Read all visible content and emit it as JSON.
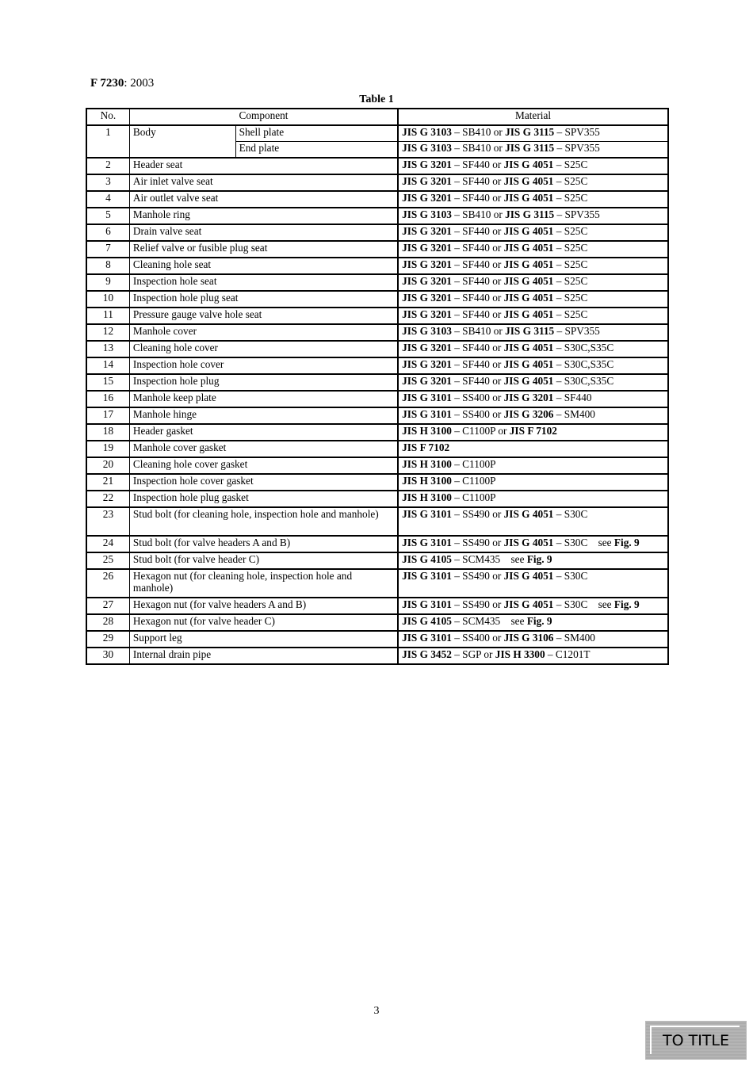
{
  "header": {
    "doc_code": "F 7230",
    "doc_year": ": 2003"
  },
  "table": {
    "caption": "Table 1",
    "columns": [
      "No.",
      "Component",
      "Material"
    ],
    "rows": [
      {
        "no": "1",
        "component": "Body",
        "sub": [
          {
            "label": "Shell plate",
            "material": [
              "JIS G 3103",
              " – SB410 or ",
              "JIS G 3115",
              " – SPV355"
            ]
          },
          {
            "label": "End plate",
            "material": [
              "JIS G 3103",
              " – SB410 or ",
              "JIS G 3115",
              " – SPV355"
            ]
          }
        ]
      },
      {
        "no": "2",
        "component": "Header seat",
        "material": [
          "JIS G 3201",
          " – SF440 or ",
          "JIS G 4051",
          " – S25C"
        ]
      },
      {
        "no": "3",
        "component": "Air inlet valve seat",
        "material": [
          "JIS G 3201",
          " – SF440 or ",
          "JIS G 4051",
          " – S25C"
        ]
      },
      {
        "no": "4",
        "component": "Air outlet valve seat",
        "material": [
          "JIS G 3201",
          " – SF440 or ",
          "JIS G 4051",
          " – S25C"
        ]
      },
      {
        "no": "5",
        "component": "Manhole ring",
        "material": [
          "JIS G 3103",
          " – SB410 or ",
          "JIS G 3115",
          " – SPV355"
        ]
      },
      {
        "no": "6",
        "component": "Drain valve seat",
        "material": [
          "JIS G 3201",
          " – SF440 or ",
          "JIS G 4051",
          " – S25C"
        ]
      },
      {
        "no": "7",
        "component": "Relief valve or fusible plug seat",
        "material": [
          "JIS G 3201",
          " – SF440 or ",
          "JIS G 4051",
          " – S25C"
        ]
      },
      {
        "no": "8",
        "component": "Cleaning hole seat",
        "material": [
          "JIS G 3201",
          " – SF440 or ",
          "JIS G 4051",
          " – S25C"
        ]
      },
      {
        "no": "9",
        "component": "Inspection hole seat",
        "material": [
          "JIS G 3201",
          " – SF440 or ",
          "JIS G 4051",
          " – S25C"
        ]
      },
      {
        "no": "10",
        "component": "Inspection hole plug seat",
        "material": [
          "JIS G 3201",
          " – SF440 or ",
          "JIS G 4051",
          " – S25C"
        ]
      },
      {
        "no": "11",
        "component": "Pressure gauge valve hole seat",
        "material": [
          "JIS G 3201",
          " – SF440 or ",
          "JIS G 4051",
          " – S25C"
        ]
      },
      {
        "no": "12",
        "component": "Manhole cover",
        "material": [
          "JIS G 3103",
          " – SB410 or ",
          "JIS G 3115",
          " – SPV355"
        ]
      },
      {
        "no": "13",
        "component": "Cleaning hole cover",
        "material": [
          "JIS G 3201",
          " – SF440 or ",
          "JIS G 4051",
          " – S30C,S35C"
        ]
      },
      {
        "no": "14",
        "component": "Inspection hole cover",
        "material": [
          "JIS G 3201",
          " – SF440 or ",
          "JIS G 4051",
          " – S30C,S35C"
        ]
      },
      {
        "no": "15",
        "component": "Inspection hole plug",
        "material": [
          "JIS G 3201",
          " – SF440 or ",
          "JIS G 4051",
          " – S30C,S35C"
        ]
      },
      {
        "no": "16",
        "component": "Manhole keep plate",
        "material": [
          "JIS G 3101",
          " – SS400 or ",
          "JIS G 3201",
          " – SF440"
        ]
      },
      {
        "no": "17",
        "component": "Manhole hinge",
        "material": [
          "JIS G 3101",
          " – SS400 or ",
          "JIS G 3206",
          " – SM400"
        ]
      },
      {
        "no": "18",
        "component": "Header gasket",
        "material": [
          "JIS H 3100",
          " – C1100P or ",
          "JIS F 7102"
        ]
      },
      {
        "no": "19",
        "component": "Manhole cover gasket",
        "material": [
          "JIS F 7102"
        ]
      },
      {
        "no": "20",
        "component": "Cleaning hole cover gasket",
        "material": [
          "JIS H 3100",
          " – C1100P"
        ]
      },
      {
        "no": "21",
        "component": "Inspection hole cover gasket",
        "material": [
          "JIS H 3100",
          " – C1100P"
        ]
      },
      {
        "no": "22",
        "component": "Inspection hole plug gasket",
        "material": [
          "JIS H 3100",
          " – C1100P"
        ]
      },
      {
        "no": "23",
        "component": "Stud bolt (for cleaning hole, inspection hole and manhole)",
        "tall": true,
        "material": [
          "JIS G 3101",
          " – SS490 or ",
          "JIS G 4051",
          " – S30C"
        ]
      },
      {
        "no": "24",
        "component": "Stud bolt (for valve headers A and B)",
        "material": [
          "JIS G 3101",
          " – SS490 or ",
          "JIS G 4051",
          " – S30C    see ",
          "Fig. 9"
        ]
      },
      {
        "no": "25",
        "component": "Stud bolt (for valve header C)",
        "material": [
          "JIS G 4105",
          " – SCM435    see ",
          "Fig. 9"
        ]
      },
      {
        "no": "26",
        "component": "Hexagon nut (for cleaning hole, inspection hole and manhole)",
        "tall": true,
        "material": [
          "JIS G 3101",
          " – SS490 or ",
          "JIS G 4051",
          " – S30C"
        ]
      },
      {
        "no": "27",
        "component": "Hexagon nut (for valve headers A and B)",
        "material": [
          "JIS G 3101",
          " – SS490 or ",
          "JIS G 4051",
          " – S30C    see ",
          "Fig. 9"
        ]
      },
      {
        "no": "28",
        "component": "Hexagon nut (for valve header C)",
        "material": [
          "JIS G 4105",
          " – SCM435    see ",
          "Fig. 9"
        ]
      },
      {
        "no": "29",
        "component": "Support leg",
        "material": [
          "JIS G 3101",
          " – SS400 or ",
          "JIS G 3106",
          " – SM400"
        ]
      },
      {
        "no": "30",
        "component": "Internal drain pipe",
        "material": [
          "JIS G 3452",
          " – SGP or ",
          "JIS H 3300",
          " – C1201T"
        ]
      }
    ]
  },
  "footer": {
    "page_number": "3",
    "to_title_label": "TO TITLE"
  }
}
